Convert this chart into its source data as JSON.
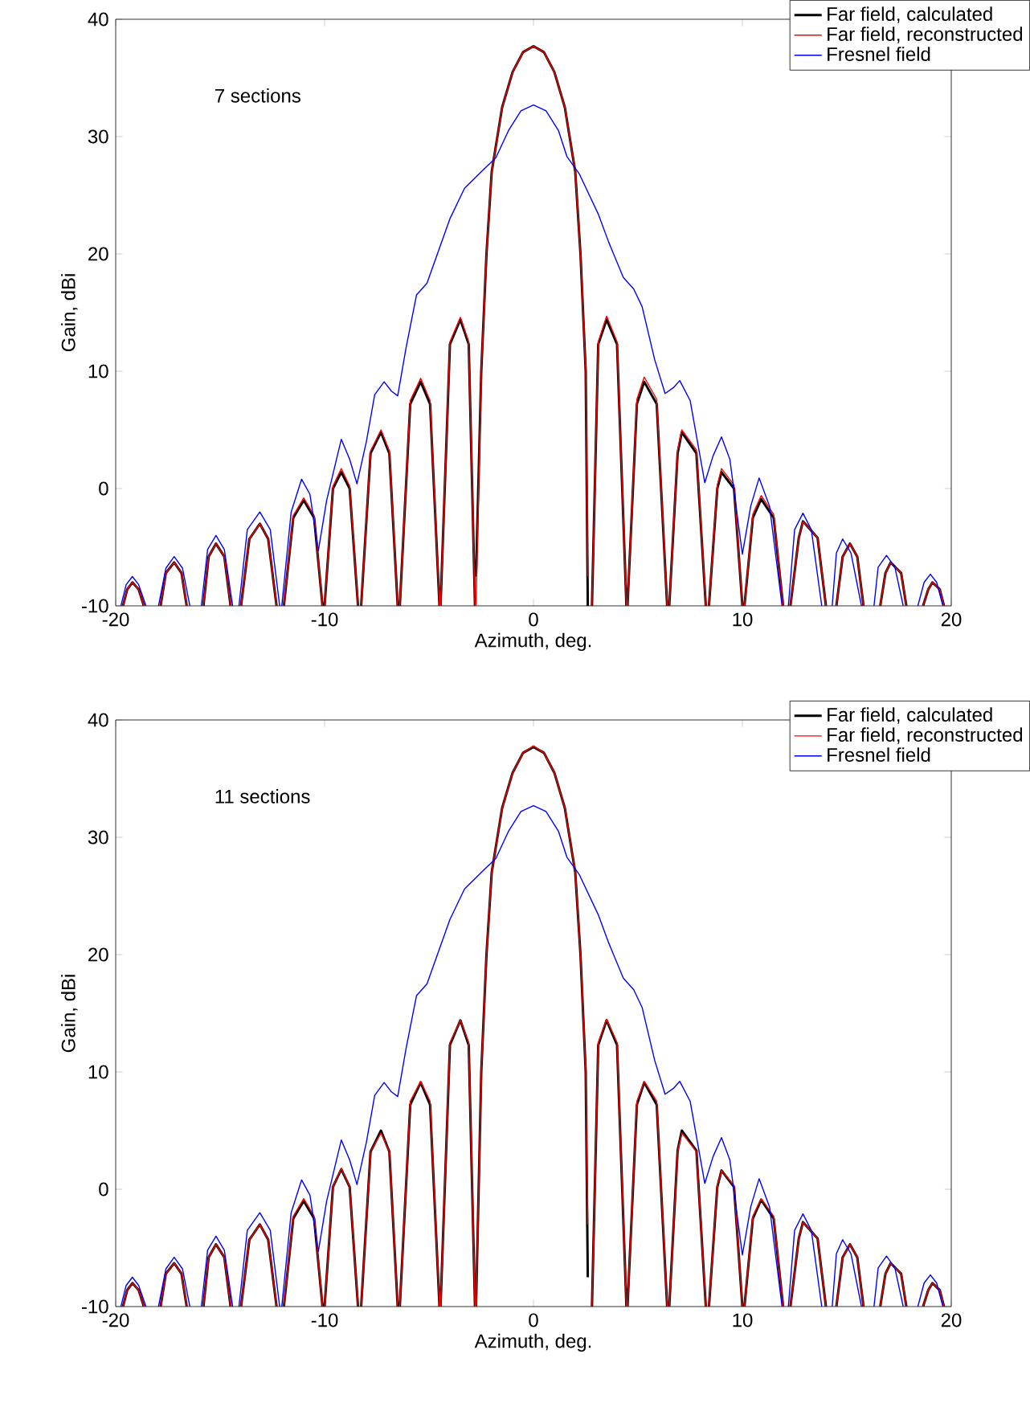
{
  "chart_data": [
    {
      "type": "line",
      "annotations": [
        "7 sections"
      ],
      "xlabel": "Azimuth, deg.",
      "ylabel": "Gain, dBi",
      "xlim": [
        -20,
        20
      ],
      "ylim": [
        -10,
        40
      ],
      "xticks": [
        -20,
        -10,
        0,
        10,
        20
      ],
      "yticks": [
        -10,
        0,
        10,
        20,
        30,
        40
      ],
      "legend": "top right",
      "series": [
        {
          "name": "Far field, calculated",
          "color": "#000000",
          "x": [
            -19.65,
            -19.45,
            -19.2,
            -18.9,
            -18.65,
            -18.2,
            -17.85,
            -17.6,
            -17.2,
            -16.85,
            -16.6,
            -16.2,
            -15.8,
            -15.55,
            -15.2,
            -14.8,
            -14.5,
            -14.2,
            -14.0,
            -13.6,
            -13.1,
            -12.7,
            -12.3,
            -12.1,
            -11.95,
            -11.5,
            -11.0,
            -10.5,
            -10.1,
            -10.05,
            -10.0,
            -9.6,
            -9.2,
            -8.8,
            -8.4,
            -8.3,
            -8.25,
            -7.8,
            -7.3,
            -6.9,
            -6.5,
            -6.45,
            -6.4,
            -5.9,
            -5.4,
            -4.95,
            -4.5,
            -4.48,
            -4.45,
            -4.0,
            -3.5,
            -3.1,
            -2.8,
            -2.78,
            -2.75,
            -2.5,
            -2.25,
            -2.0,
            -1.5,
            -1.0,
            -0.5,
            0,
            0.5,
            1.0,
            1.5,
            2.0,
            2.25,
            2.5,
            2.6,
            2.7,
            2.8,
            3.1,
            3.5,
            4.0,
            4.45,
            4.48,
            4.5,
            4.95,
            5.3,
            5.9,
            6.4,
            6.45,
            6.5,
            6.9,
            7.1,
            7.8,
            8.25,
            8.3,
            8.4,
            8.8,
            9.0,
            9.6,
            10.0,
            10.05,
            10.1,
            10.5,
            10.9,
            11.5,
            11.95,
            12.1,
            12.3,
            12.7,
            12.9,
            13.6,
            14.0,
            14.2,
            14.5,
            14.8,
            15.15,
            15.5,
            15.8,
            16.2,
            16.6,
            16.85,
            17.1,
            17.6,
            17.85,
            18.2,
            18.65,
            18.9,
            19.1,
            19.45,
            19.65
          ],
          "values": [
            -10,
            -8.6,
            -8,
            -8.6,
            -10,
            null,
            -10,
            -7.2,
            -6.3,
            -7.2,
            -10,
            null,
            -10,
            -5.8,
            -4.7,
            -5.8,
            -10,
            null,
            -10,
            -4.3,
            -3,
            -4.3,
            -10,
            null,
            -10,
            -2.5,
            -1,
            -2.5,
            -10,
            null,
            -10,
            0,
            1.4,
            0,
            -10,
            null,
            -10,
            3,
            4.8,
            3,
            -10,
            null,
            -10,
            7.2,
            9.1,
            7.2,
            -10,
            null,
            -10,
            12.3,
            14.4,
            12.3,
            -10,
            null,
            -7.5,
            10,
            20,
            27,
            32.5,
            35.5,
            37.2,
            37.7,
            37.2,
            35.5,
            32.5,
            27,
            20,
            10,
            -10,
            null,
            -10,
            12.3,
            14.4,
            12.3,
            -10,
            null,
            -10,
            7.2,
            9.1,
            7.2,
            -10,
            null,
            -10,
            3,
            4.8,
            3,
            -10,
            null,
            -10,
            0,
            1.4,
            0,
            -10,
            null,
            -10,
            -2.5,
            -0.9,
            -2.5,
            -10,
            null,
            -10,
            -4.2,
            -2.8,
            -4.2,
            -10,
            null,
            -10,
            -5.8,
            -4.7,
            -5.8,
            -10,
            null,
            -10,
            -7.2,
            -6.3,
            -7.2,
            -10,
            null,
            -10,
            -8.6,
            -8,
            -8.6,
            -10
          ]
        },
        {
          "name": "Far field, reconstructed",
          "color": "#ff0000",
          "x": [
            -19.65,
            -19.45,
            -19.2,
            -18.9,
            -18.65,
            -18.2,
            -17.85,
            -17.6,
            -17.2,
            -16.85,
            -16.6,
            -16.2,
            -15.8,
            -15.55,
            -15.2,
            -14.8,
            -14.5,
            -14.2,
            -14.0,
            -13.6,
            -13.1,
            -12.7,
            -12.3,
            -12.1,
            -11.95,
            -11.5,
            -11.0,
            -10.5,
            -10.1,
            -10.05,
            -10.0,
            -9.6,
            -9.2,
            -8.8,
            -8.4,
            -8.3,
            -8.25,
            -7.8,
            -7.3,
            -6.9,
            -6.5,
            -6.45,
            -6.4,
            -5.9,
            -5.4,
            -4.95,
            -4.5,
            -4.48,
            -4.45,
            -4.0,
            -3.5,
            -3.1,
            -2.8,
            -2.78,
            -2.75,
            -2.5,
            -2.25,
            -2.0,
            -1.5,
            -1.0,
            -0.5,
            0,
            0.5,
            1.0,
            1.5,
            2.0,
            2.25,
            2.5,
            2.6,
            2.7,
            2.8,
            3.1,
            3.5,
            4.0,
            4.45,
            4.48,
            4.5,
            4.95,
            5.3,
            5.9,
            6.4,
            6.45,
            6.5,
            6.9,
            7.1,
            7.8,
            8.25,
            8.3,
            8.4,
            8.8,
            9.0,
            9.6,
            10.0,
            10.05,
            10.1,
            10.5,
            10.9,
            11.5,
            11.95,
            12.1,
            12.3,
            12.7,
            12.9,
            13.6,
            14.0,
            14.2,
            14.5,
            14.8,
            15.15,
            15.5,
            15.8,
            16.2,
            16.6,
            16.85,
            17.1,
            17.6,
            17.85,
            18.2,
            18.65,
            18.9,
            19.1,
            19.45,
            19.65
          ],
          "values": [
            -10,
            -8.6,
            -8,
            -8.6,
            -10,
            null,
            -10,
            -7.2,
            -6.3,
            -7.2,
            -10,
            null,
            -10,
            -5.8,
            -4.7,
            -5.8,
            -10,
            null,
            -10,
            -4.3,
            -3,
            -4.3,
            -10,
            null,
            -10,
            -2.3,
            -0.8,
            -2.3,
            -10,
            null,
            -10,
            0.2,
            1.7,
            0.2,
            -10,
            null,
            -10,
            3.2,
            5,
            3.2,
            -10,
            null,
            -10,
            7.5,
            9.4,
            7.5,
            -10,
            null,
            -10,
            12.5,
            14.6,
            12.5,
            -10,
            null,
            -10,
            10,
            20,
            27,
            32.5,
            35.5,
            37.2,
            37.7,
            37.2,
            35.5,
            32.5,
            27,
            20,
            10,
            -7.5,
            null,
            -10,
            12.5,
            14.7,
            12.5,
            -10,
            null,
            -10,
            7.6,
            9.5,
            7.6,
            -10,
            null,
            -10,
            3.3,
            5,
            3.3,
            -10,
            null,
            -10,
            0.3,
            1.7,
            0.3,
            -10,
            null,
            -10,
            -2.2,
            -0.6,
            -2.2,
            -10,
            null,
            -10,
            -4.2,
            -2.8,
            -4.2,
            -10,
            null,
            -10,
            -5.8,
            -4.7,
            -5.8,
            -10,
            null,
            -10,
            -7.2,
            -6.3,
            -7.2,
            -10,
            null,
            -10,
            -8.6,
            -8,
            -8.6,
            -10
          ]
        },
        {
          "name": "Fresnel field",
          "color": "#0000ff",
          "x": [
            -19.75,
            -19.5,
            -19.2,
            -18.9,
            -18.55,
            -18.2,
            -17.95,
            -17.6,
            -17.2,
            -16.8,
            -16.45,
            -16.2,
            -15.9,
            -15.6,
            -15.2,
            -14.8,
            -14.4,
            -14.25,
            -14.1,
            -13.7,
            -13.1,
            -12.6,
            -12.15,
            -12.1,
            -12.05,
            -11.6,
            -11.1,
            -10.7,
            -10.3,
            -9.9,
            -9.2,
            -8.8,
            -8.45,
            -8.0,
            -7.6,
            -7.15,
            -6.8,
            -6.5,
            -6.1,
            -5.6,
            -5.1,
            -4.5,
            -4.0,
            -3.3,
            -2.5,
            -1.8,
            -1.2,
            -0.6,
            0,
            0.6,
            1.2,
            1.6,
            2.2,
            3.1,
            3.6,
            4.3,
            4.8,
            5.2,
            5.8,
            6.3,
            6.7,
            7.0,
            7.5,
            8.2,
            8.6,
            9.0,
            9.4,
            10.0,
            10.4,
            10.8,
            11.3,
            11.9,
            12.05,
            12.2,
            12.5,
            12.9,
            13.3,
            13.8,
            14.05,
            14.3,
            14.5,
            14.8,
            15.2,
            15.7,
            16.0,
            16.3,
            16.5,
            16.9,
            17.3,
            17.7,
            18.05,
            18.4,
            18.7,
            19.0,
            19.3,
            19.6
          ],
          "values": [
            -10,
            -8.2,
            -7.5,
            -8.2,
            -10,
            null,
            -10,
            -6.8,
            -5.8,
            -6.8,
            -10,
            null,
            -10,
            -5.2,
            -4,
            -5.2,
            -10,
            null,
            -10,
            -3.5,
            -2,
            -3.5,
            -10,
            null,
            -10,
            -2,
            0.8,
            -0.5,
            -5.3,
            -1,
            4.2,
            2.5,
            0.4,
            4,
            8,
            9.1,
            8.3,
            7.9,
            12,
            16.5,
            17.5,
            20.5,
            23,
            25.6,
            27,
            28.2,
            30.5,
            32.2,
            32.7,
            32.2,
            30.5,
            28.3,
            26.8,
            23.4,
            21,
            18,
            17,
            15.5,
            11,
            8.1,
            8.6,
            9.2,
            7.5,
            0.5,
            2.8,
            4.4,
            2.5,
            -5.6,
            -1.5,
            0.9,
            -1.5,
            -10,
            null,
            -10,
            -3.5,
            -2.1,
            -3.5,
            -10,
            null,
            -10,
            -5.5,
            -4.3,
            -5.5,
            -10,
            null,
            -10,
            -6.7,
            -5.7,
            -6.7,
            -10,
            null,
            -10,
            -8,
            -7.3,
            -8,
            -10
          ]
        }
      ]
    },
    {
      "type": "line",
      "annotations": [
        "11 sections"
      ],
      "xlabel": "Azimuth, deg.",
      "ylabel": "Gain, dBi",
      "xlim": [
        -20,
        20
      ],
      "ylim": [
        -10,
        40
      ],
      "xticks": [
        -20,
        -10,
        0,
        10,
        20
      ],
      "yticks": [
        -10,
        0,
        10,
        20,
        30,
        40
      ],
      "legend": "top right",
      "series": [
        {
          "name": "Far field, calculated",
          "color": "#000000",
          "x": [
            -19.65,
            -19.45,
            -19.2,
            -18.9,
            -18.65,
            -18.2,
            -17.85,
            -17.6,
            -17.2,
            -16.85,
            -16.6,
            -16.2,
            -15.8,
            -15.55,
            -15.2,
            -14.8,
            -14.5,
            -14.2,
            -14.0,
            -13.6,
            -13.1,
            -12.7,
            -12.3,
            -12.1,
            -11.95,
            -11.5,
            -11.0,
            -10.5,
            -10.1,
            -10.05,
            -10.0,
            -9.6,
            -9.2,
            -8.8,
            -8.4,
            -8.3,
            -8.25,
            -7.8,
            -7.3,
            -6.9,
            -6.5,
            -6.45,
            -6.4,
            -5.9,
            -5.4,
            -4.95,
            -4.5,
            -4.48,
            -4.45,
            -4.0,
            -3.5,
            -3.1,
            -2.8,
            -2.78,
            -2.75,
            -2.5,
            -2.25,
            -2.0,
            -1.5,
            -1.0,
            -0.5,
            0,
            0.5,
            1.0,
            1.5,
            2.0,
            2.25,
            2.5,
            2.6,
            2.7,
            2.8,
            3.1,
            3.5,
            4.0,
            4.45,
            4.48,
            4.5,
            4.95,
            5.3,
            5.9,
            6.4,
            6.45,
            6.5,
            6.9,
            7.1,
            7.8,
            8.25,
            8.3,
            8.4,
            8.8,
            9.0,
            9.6,
            10.0,
            10.05,
            10.1,
            10.5,
            10.9,
            11.5,
            11.95,
            12.1,
            12.3,
            12.7,
            12.9,
            13.6,
            14.0,
            14.2,
            14.5,
            14.8,
            15.15,
            15.5,
            15.8,
            16.2,
            16.6,
            16.85,
            17.1,
            17.6,
            17.85,
            18.2,
            18.65,
            18.9,
            19.1,
            19.45,
            19.65
          ],
          "values": [
            -10,
            -8.6,
            -8,
            -8.6,
            -10,
            null,
            -10,
            -7.2,
            -6.3,
            -7.2,
            -10,
            null,
            -10,
            -5.8,
            -4.7,
            -5.8,
            -10,
            null,
            -10,
            -4.3,
            -3,
            -4.3,
            -10,
            null,
            -10,
            -2.5,
            -1,
            -2.5,
            -10,
            null,
            -10,
            0.2,
            1.7,
            0.2,
            -10,
            null,
            -10,
            3.2,
            5,
            3.2,
            -10,
            null,
            -10,
            7.2,
            9.1,
            7.2,
            -10,
            null,
            -10,
            12.3,
            14.4,
            12.3,
            -10,
            null,
            -10,
            10,
            20,
            27,
            32.5,
            35.5,
            37.2,
            37.7,
            37.2,
            35.5,
            32.5,
            27,
            20,
            10,
            -7.5,
            null,
            -10,
            12.3,
            14.4,
            12.3,
            -10,
            null,
            -10,
            7.2,
            9.1,
            7.2,
            -10,
            null,
            -10,
            3.3,
            5,
            3.3,
            -10,
            null,
            -10,
            0.2,
            1.6,
            0.2,
            -10,
            null,
            -10,
            -2.5,
            -0.9,
            -2.5,
            -10,
            null,
            -10,
            -4.2,
            -2.8,
            -4.2,
            -10,
            null,
            -10,
            -5.8,
            -4.7,
            -5.8,
            -10,
            null,
            -10,
            -7.2,
            -6.3,
            -7.2,
            -10,
            null,
            -10,
            -8.6,
            -8,
            -8.6,
            -10
          ]
        },
        {
          "name": "Far field, reconstructed",
          "color": "#ff0000",
          "x": [
            -19.65,
            -19.45,
            -19.2,
            -18.9,
            -18.65,
            -18.2,
            -17.85,
            -17.6,
            -17.2,
            -16.85,
            -16.6,
            -16.2,
            -15.8,
            -15.55,
            -15.2,
            -14.8,
            -14.5,
            -14.2,
            -14.0,
            -13.6,
            -13.1,
            -12.7,
            -12.3,
            -12.1,
            -11.95,
            -11.5,
            -11.0,
            -10.5,
            -10.1,
            -10.05,
            -10.0,
            -9.6,
            -9.2,
            -8.8,
            -8.4,
            -8.3,
            -8.25,
            -7.8,
            -7.3,
            -6.9,
            -6.5,
            -6.45,
            -6.4,
            -5.9,
            -5.4,
            -4.95,
            -4.5,
            -4.48,
            -4.45,
            -4.0,
            -3.5,
            -3.1,
            -2.8,
            -2.78,
            -2.75,
            -2.5,
            -2.25,
            -2.0,
            -1.5,
            -1.0,
            -0.5,
            0,
            0.5,
            1.0,
            1.5,
            2.0,
            2.25,
            2.5,
            2.6,
            2.7,
            2.8,
            3.1,
            3.5,
            4.0,
            4.45,
            4.48,
            4.5,
            4.95,
            5.3,
            5.9,
            6.4,
            6.45,
            6.5,
            6.9,
            7.1,
            7.8,
            8.25,
            8.3,
            8.4,
            8.8,
            9.0,
            9.6,
            10.0,
            10.05,
            10.1,
            10.5,
            10.9,
            11.5,
            11.95,
            12.1,
            12.3,
            12.7,
            12.9,
            13.6,
            14.0,
            14.2,
            14.5,
            14.8,
            15.15,
            15.5,
            15.8,
            16.2,
            16.6,
            16.85,
            17.1,
            17.6,
            17.85,
            18.2,
            18.65,
            18.9,
            19.1,
            19.45,
            19.65
          ],
          "values": [
            -10,
            -8.6,
            -8,
            -8.6,
            -10,
            null,
            -10,
            -7.2,
            -6.3,
            -7.2,
            -10,
            null,
            -10,
            -5.8,
            -4.7,
            -5.8,
            -10,
            null,
            -10,
            -4.3,
            -3,
            -4.3,
            -10,
            null,
            -10,
            -2.3,
            -0.8,
            -2.3,
            -10,
            null,
            -10,
            0.2,
            1.8,
            0.2,
            -10,
            null,
            -10,
            3.2,
            4.8,
            3.2,
            -10,
            null,
            -10,
            7.5,
            9.2,
            7.5,
            -10,
            null,
            -10,
            12.5,
            14.4,
            12.5,
            -10,
            null,
            -10,
            10,
            20,
            27,
            32.5,
            35.5,
            37.2,
            37.8,
            37.2,
            35.5,
            32.5,
            27,
            20,
            10,
            -3,
            null,
            -10,
            12.5,
            14.5,
            12.5,
            -10,
            null,
            -10,
            7.5,
            9.2,
            7.5,
            -10,
            null,
            -10,
            3.2,
            4.8,
            3.2,
            -10,
            null,
            -10,
            0.3,
            1.6,
            0.3,
            -10,
            null,
            -10,
            -2.3,
            -0.8,
            -2.3,
            -10,
            null,
            -10,
            -4.2,
            -2.8,
            -4.2,
            -10,
            null,
            -10,
            -5.8,
            -4.7,
            -5.8,
            -10,
            null,
            -10,
            -7.2,
            -6.3,
            -7.2,
            -10,
            null,
            -10,
            -8.6,
            -8,
            -8.6,
            -10
          ]
        },
        {
          "name": "Fresnel field",
          "color": "#0000ff",
          "x": [
            -19.75,
            -19.5,
            -19.2,
            -18.9,
            -18.55,
            -18.2,
            -17.95,
            -17.6,
            -17.2,
            -16.8,
            -16.45,
            -16.2,
            -15.9,
            -15.6,
            -15.2,
            -14.8,
            -14.4,
            -14.25,
            -14.1,
            -13.7,
            -13.1,
            -12.6,
            -12.15,
            -12.1,
            -12.05,
            -11.6,
            -11.1,
            -10.7,
            -10.3,
            -9.9,
            -9.2,
            -8.8,
            -8.45,
            -8.0,
            -7.6,
            -7.15,
            -6.8,
            -6.5,
            -6.1,
            -5.6,
            -5.1,
            -4.5,
            -4.0,
            -3.3,
            -2.5,
            -1.8,
            -1.2,
            -0.6,
            0,
            0.6,
            1.2,
            1.6,
            2.2,
            3.1,
            3.6,
            4.3,
            4.8,
            5.2,
            5.8,
            6.3,
            6.7,
            7.0,
            7.5,
            8.2,
            8.6,
            9.0,
            9.4,
            10.0,
            10.4,
            10.8,
            11.3,
            11.9,
            12.05,
            12.2,
            12.5,
            12.9,
            13.3,
            13.8,
            14.05,
            14.3,
            14.5,
            14.8,
            15.2,
            15.7,
            16.0,
            16.3,
            16.5,
            16.9,
            17.3,
            17.7,
            18.05,
            18.4,
            18.7,
            19.0,
            19.3,
            19.6
          ],
          "values": [
            -10,
            -8.2,
            -7.5,
            -8.2,
            -10,
            null,
            -10,
            -6.8,
            -5.8,
            -6.8,
            -10,
            null,
            -10,
            -5.2,
            -4,
            -5.2,
            -10,
            null,
            -10,
            -3.5,
            -2,
            -3.5,
            -10,
            null,
            -10,
            -2,
            0.8,
            -0.5,
            -5.3,
            -1,
            4.2,
            2.5,
            0.4,
            4,
            8,
            9.1,
            8.3,
            7.9,
            12,
            16.5,
            17.5,
            20.5,
            23,
            25.6,
            27,
            28.2,
            30.5,
            32.2,
            32.7,
            32.2,
            30.5,
            28.3,
            26.8,
            23.4,
            21,
            18,
            17,
            15.5,
            11,
            8.1,
            8.6,
            9.2,
            7.5,
            0.5,
            2.8,
            4.4,
            2.5,
            -5.6,
            -1.5,
            0.9,
            -1.5,
            -10,
            null,
            -10,
            -3.5,
            -2.1,
            -3.5,
            -10,
            null,
            -10,
            -5.5,
            -4.3,
            -5.5,
            -10,
            null,
            -10,
            -6.7,
            -5.7,
            -6.7,
            -10,
            null,
            -10,
            -8,
            -7.3,
            -8,
            -10
          ]
        }
      ]
    }
  ]
}
